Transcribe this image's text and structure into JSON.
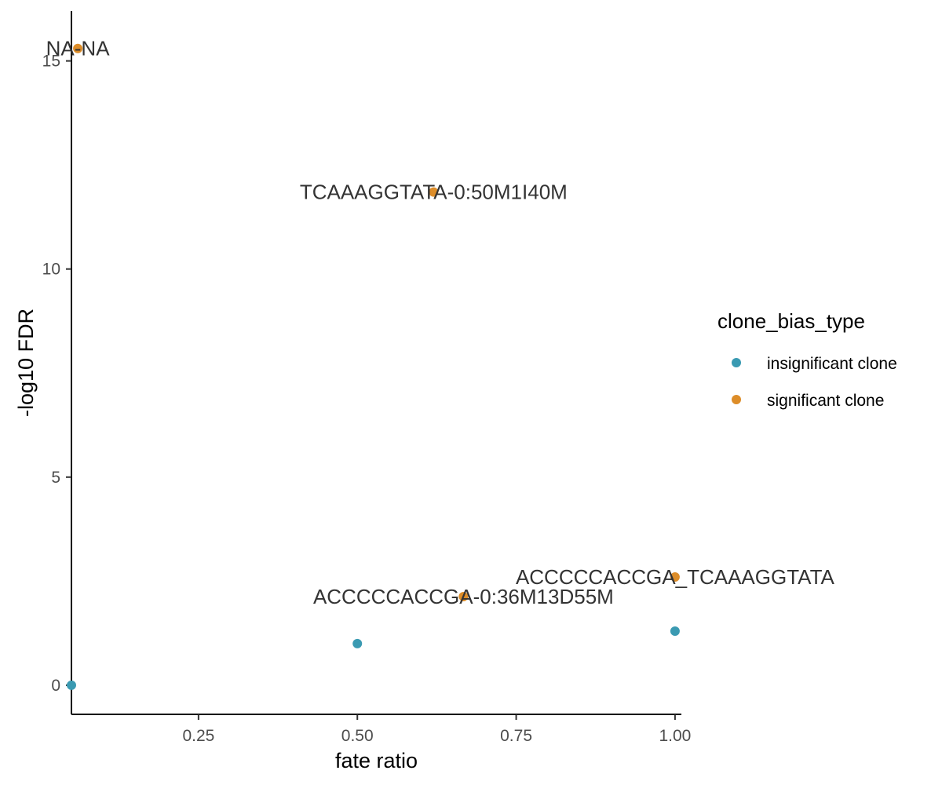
{
  "chart_data": {
    "type": "scatter",
    "xlabel": "fate ratio",
    "ylabel": "-log10 FDR",
    "xlim": [
      0.05,
      1.01
    ],
    "ylim": [
      -0.7,
      16.2
    ],
    "x_ticks": [
      0.25,
      0.5,
      0.75,
      1.0
    ],
    "x_tick_labels": [
      "0.25",
      "0.50",
      "0.75",
      "1.00"
    ],
    "y_ticks": [
      0,
      5,
      10,
      15
    ],
    "y_tick_labels": [
      "0",
      "5",
      "10",
      "15"
    ],
    "grid": false,
    "legend": {
      "title": "clone_bias_type",
      "placement": "right"
    },
    "series": [
      {
        "name": "insignificant clone",
        "color": "#3a9ab2",
        "points": [
          {
            "x": 0.05,
            "y": 0.0
          },
          {
            "x": 0.5,
            "y": 1.0
          },
          {
            "x": 1.0,
            "y": 1.3
          }
        ]
      },
      {
        "name": "significant clone",
        "color": "#dd8d29",
        "points": [
          {
            "x": 0.06,
            "y": 15.3
          },
          {
            "x": 0.62,
            "y": 11.85
          },
          {
            "x": 0.667,
            "y": 2.13
          },
          {
            "x": 1.0,
            "y": 2.6
          }
        ]
      }
    ],
    "annotations": [
      {
        "text": "NA-NA",
        "x": 0.06,
        "y": 15.3
      },
      {
        "text": "TCAAAGGTATA-0:50M1I40M",
        "x": 0.62,
        "y": 11.85
      },
      {
        "text": "ACCCCCACCGA_TCAAAGGTATA",
        "x": 1.0,
        "y": 2.6
      },
      {
        "text": "ACCCCCACCGA-0:36M13D55M",
        "x": 0.667,
        "y": 2.13
      }
    ]
  }
}
